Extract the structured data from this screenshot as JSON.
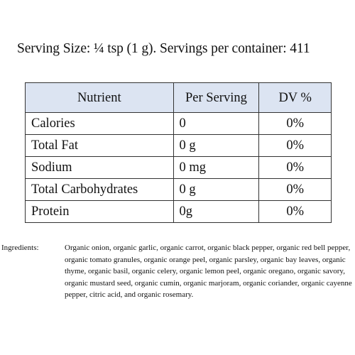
{
  "serving_line": "Serving Size: ¼ tsp (1 g). Servings per container: 411",
  "table": {
    "headers": [
      "Nutrient",
      "Per Serving",
      "DV %"
    ],
    "rows": [
      {
        "nutrient": "Calories",
        "per_serving": "0",
        "dv": "0%"
      },
      {
        "nutrient": "Total Fat",
        "per_serving": "0 g",
        "dv": "0%"
      },
      {
        "nutrient": "Sodium",
        "per_serving": "0 mg",
        "dv": "0%"
      },
      {
        "nutrient": "Total Carbohydrates",
        "per_serving": "0 g",
        "dv": "0%"
      },
      {
        "nutrient": "Protein",
        "per_serving": "0g",
        "dv": "0%"
      }
    ]
  },
  "ingredients": {
    "label": "Ingredients:",
    "text": "Organic onion, organic garlic, organic carrot, organic black pepper, organic red bell pepper, organic tomato granules, organic orange peel, organic parsley, organic bay leaves, organic thyme, organic basil, organic celery, organic lemon peel, organic oregano, organic savory, organic mustard seed, organic cumin, organic marjoram, organic coriander, organic cayenne pepper, citric acid, and organic rosemary."
  },
  "colors": {
    "header_background": "#dce4f2",
    "border": "#333333",
    "text": "#111111"
  }
}
